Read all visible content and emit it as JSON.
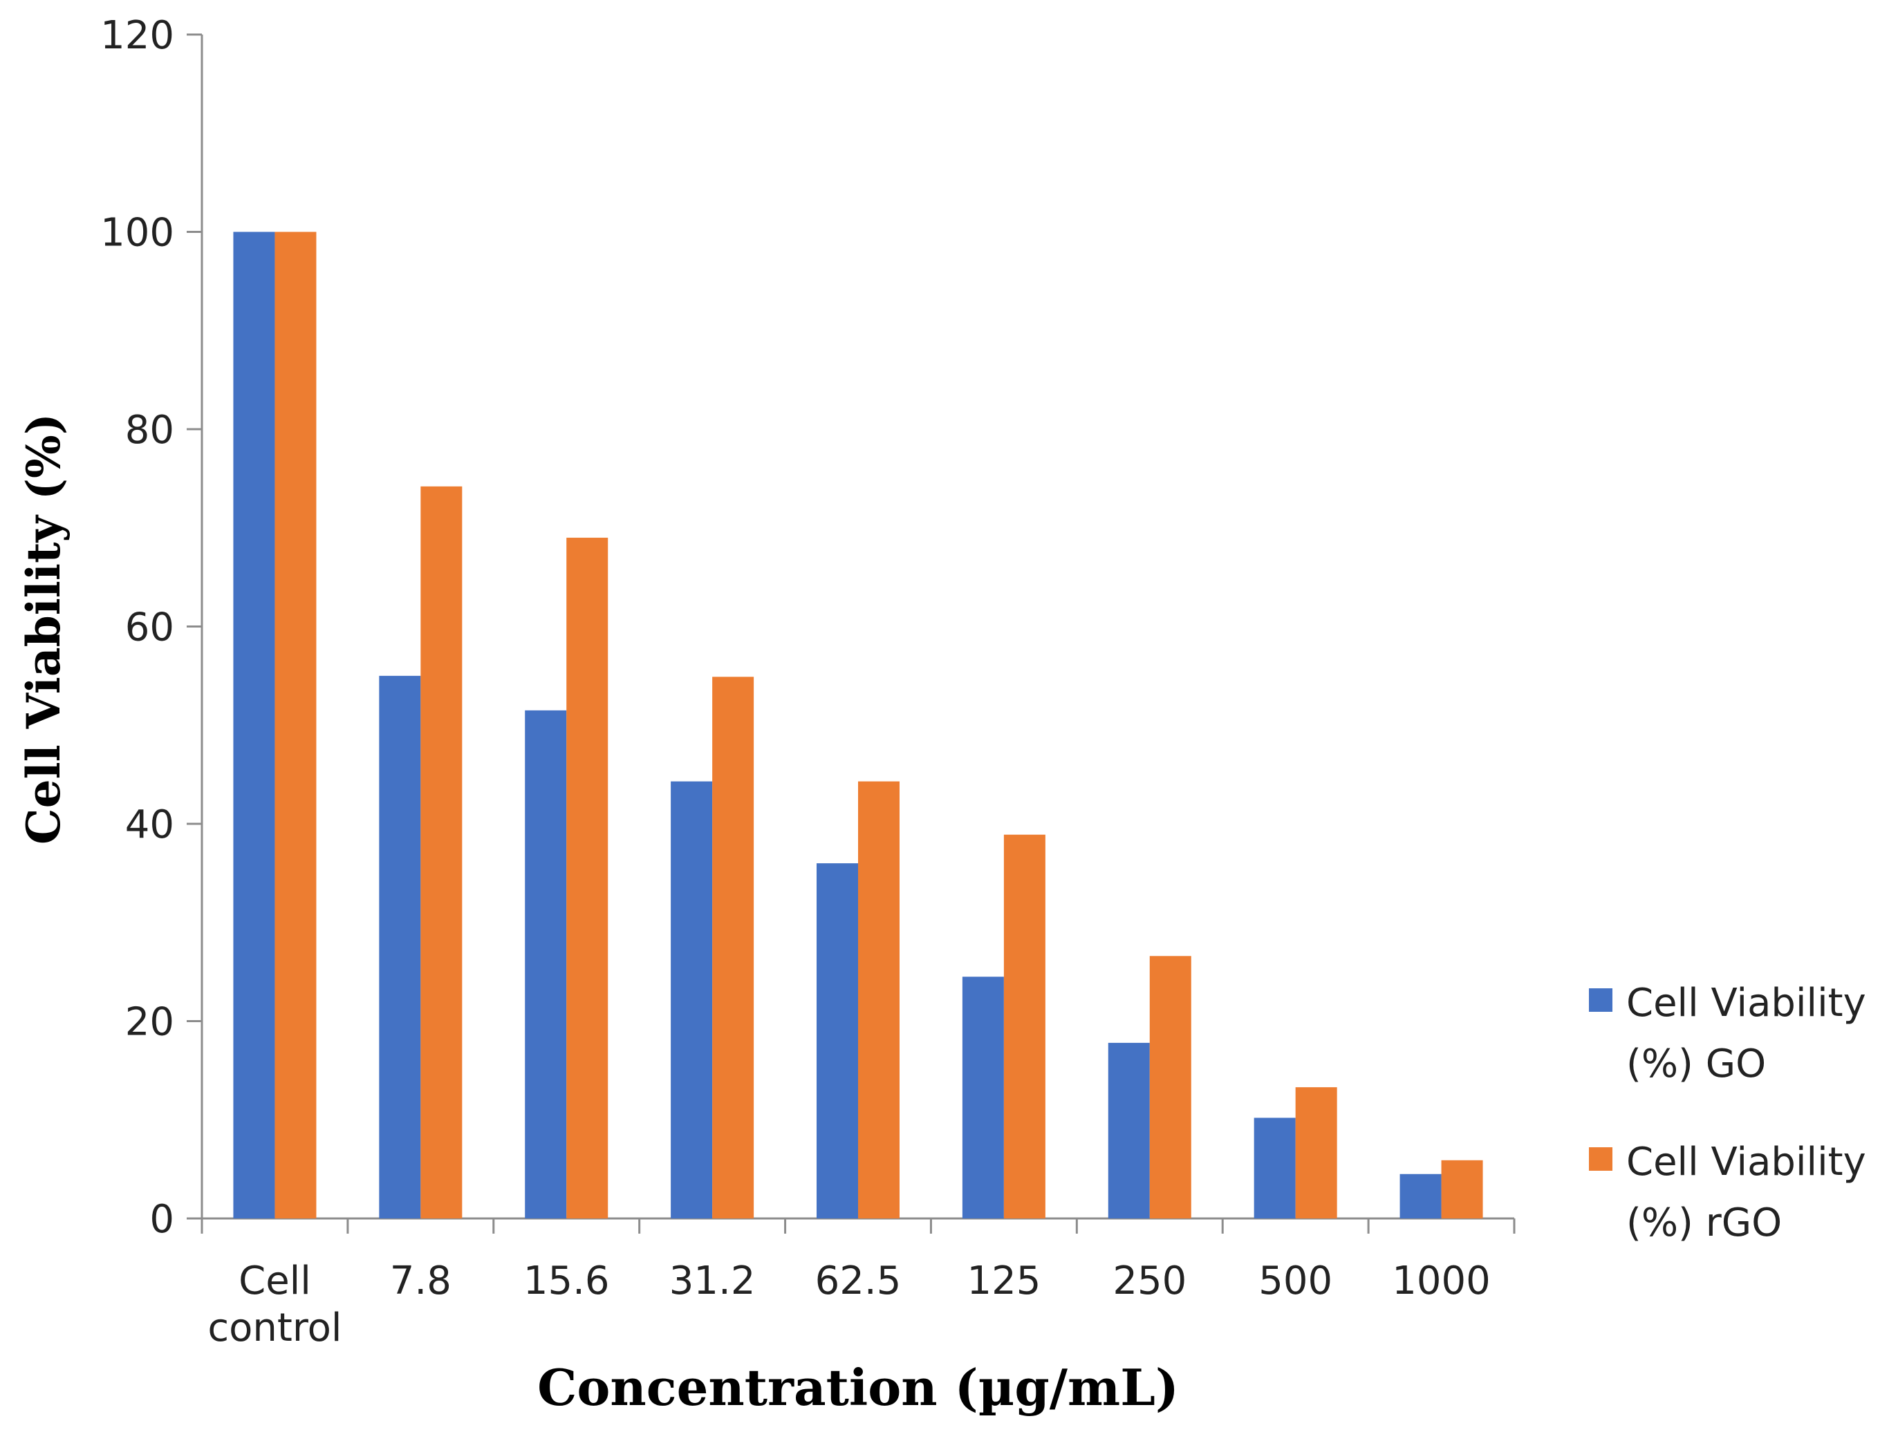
{
  "chart_data": {
    "type": "bar",
    "title": "",
    "xlabel": "Concentration (µg/mL)",
    "ylabel": "Cell Viability (%)",
    "ylim": [
      0,
      120
    ],
    "yticks": [
      0,
      20,
      40,
      60,
      80,
      100,
      120
    ],
    "grid": false,
    "legend_position": "right",
    "categories": [
      [
        "Cell",
        "control"
      ],
      [
        "7.8"
      ],
      [
        "15.6"
      ],
      [
        "31.2"
      ],
      [
        "62.5"
      ],
      [
        "125"
      ],
      [
        "250"
      ],
      [
        "500"
      ],
      [
        "1000"
      ]
    ],
    "series": [
      {
        "name": [
          "Cell Viability",
          "(%) GO"
        ],
        "color": "#4472C4",
        "values": [
          100,
          55,
          51.5,
          44.3,
          36,
          24.5,
          17.8,
          10.2,
          4.5
        ]
      },
      {
        "name": [
          "Cell Viability",
          "(%) rGO"
        ],
        "color": "#ED7D31",
        "values": [
          100,
          74.2,
          69,
          54.9,
          44.3,
          38.9,
          26.6,
          13.3,
          5.9
        ]
      }
    ]
  }
}
